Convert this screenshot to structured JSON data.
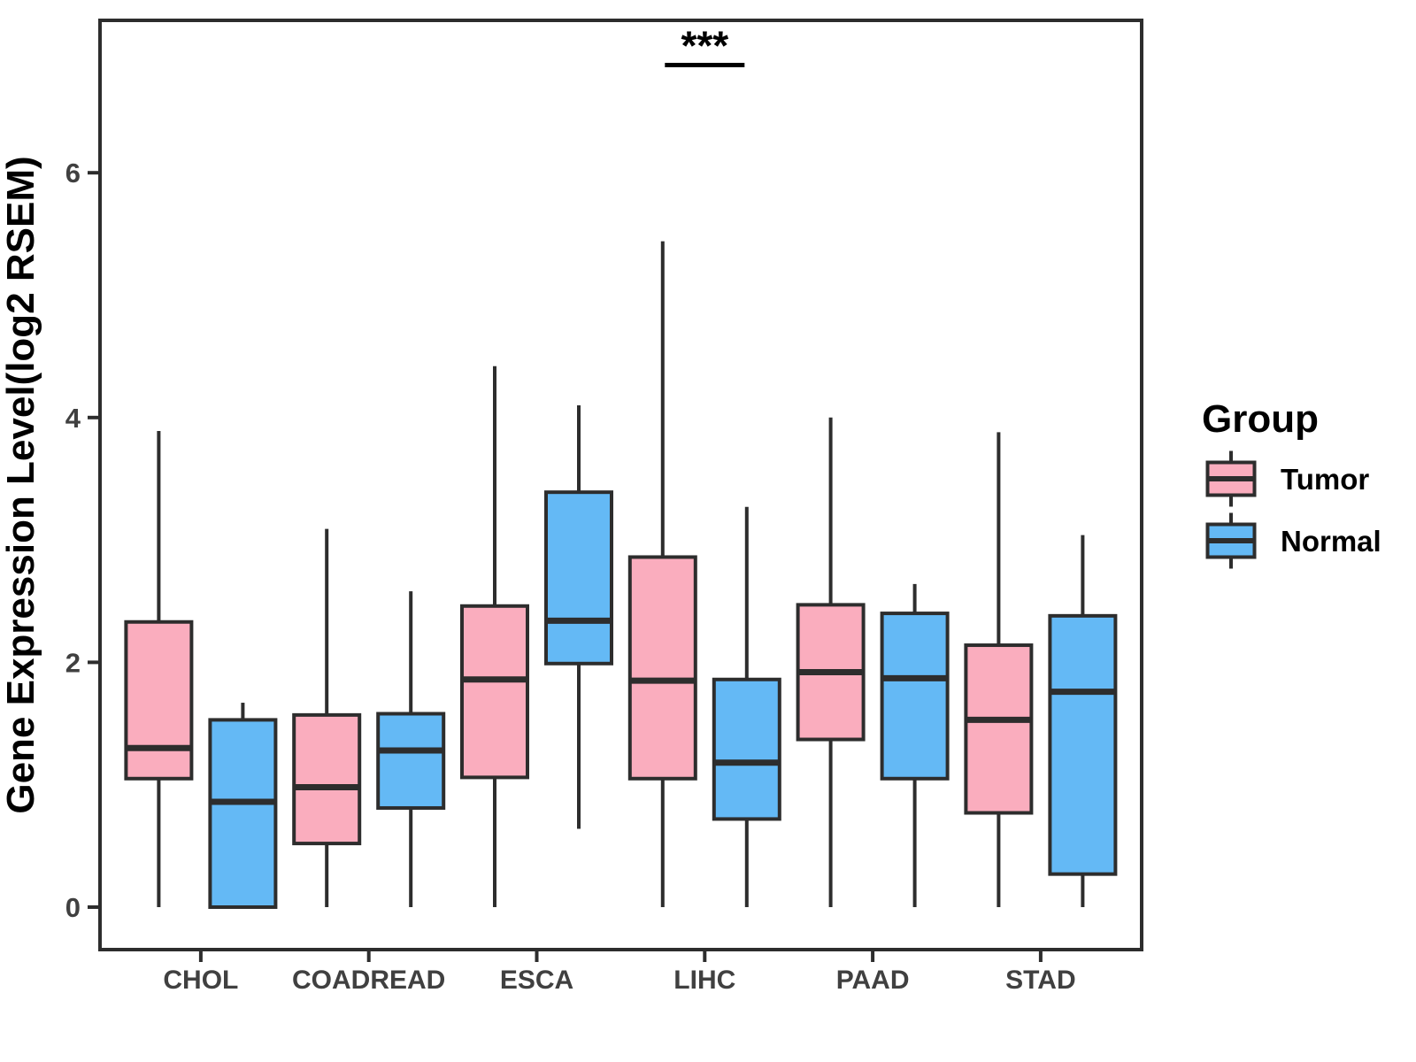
{
  "chart_data": {
    "type": "boxplot",
    "title": "",
    "xlabel": "",
    "ylabel": "Gene Expression Level(log2 RSEM)",
    "ylim": [
      -0.35,
      7.25
    ],
    "yticks": [
      0,
      2,
      4,
      6
    ],
    "grid": "off",
    "categories": [
      "CHOL",
      "COADREAD",
      "ESCA",
      "LIHC",
      "PAAD",
      "STAD"
    ],
    "colors": {
      "tumor_fill": "#FAADBE",
      "normal_fill": "#64B9F5",
      "box_stroke": "#2D2D2D",
      "axis_text": "#404040",
      "panel_border": "#2D2D2D",
      "annotation": "#000000"
    },
    "legend": {
      "title": "Group",
      "position": "right",
      "entries": [
        {
          "label": "Tumor",
          "color": "#FAADBE"
        },
        {
          "label": "Normal",
          "color": "#64B9F5"
        }
      ]
    },
    "series": [
      {
        "name": "Tumor",
        "color": "#FAADBE",
        "boxes": [
          {
            "category": "CHOL",
            "low": 0.0,
            "q1": 1.05,
            "median": 1.3,
            "q3": 2.33,
            "high": 3.89
          },
          {
            "category": "COADREAD",
            "low": 0.0,
            "q1": 0.52,
            "median": 0.98,
            "q3": 1.57,
            "high": 3.09
          },
          {
            "category": "ESCA",
            "low": 0.0,
            "q1": 1.06,
            "median": 1.86,
            "q3": 2.46,
            "high": 4.42
          },
          {
            "category": "LIHC",
            "low": 0.0,
            "q1": 1.05,
            "median": 1.85,
            "q3": 2.86,
            "high": 5.44
          },
          {
            "category": "PAAD",
            "low": 0.0,
            "q1": 1.37,
            "median": 1.92,
            "q3": 2.47,
            "high": 4.0
          },
          {
            "category": "STAD",
            "low": 0.0,
            "q1": 0.77,
            "median": 1.53,
            "q3": 2.14,
            "high": 3.88
          }
        ]
      },
      {
        "name": "Normal",
        "color": "#64B9F5",
        "boxes": [
          {
            "category": "CHOL",
            "low": 0.0,
            "q1": 0.0,
            "median": 0.86,
            "q3": 1.53,
            "high": 1.67
          },
          {
            "category": "COADREAD",
            "low": 0.0,
            "q1": 0.81,
            "median": 1.28,
            "q3": 1.58,
            "high": 2.58
          },
          {
            "category": "ESCA",
            "low": 0.64,
            "q1": 1.99,
            "median": 2.34,
            "q3": 3.39,
            "high": 4.1
          },
          {
            "category": "LIHC",
            "low": 0.0,
            "q1": 0.72,
            "median": 1.18,
            "q3": 1.86,
            "high": 3.27
          },
          {
            "category": "PAAD",
            "low": 0.0,
            "q1": 1.05,
            "median": 1.87,
            "q3": 2.4,
            "high": 2.64
          },
          {
            "category": "STAD",
            "low": 0.0,
            "q1": 0.27,
            "median": 1.76,
            "q3": 2.38,
            "high": 3.04
          }
        ]
      }
    ],
    "annotations": [
      {
        "text": "***",
        "category": "LIHC",
        "line_y": 6.88
      }
    ]
  }
}
